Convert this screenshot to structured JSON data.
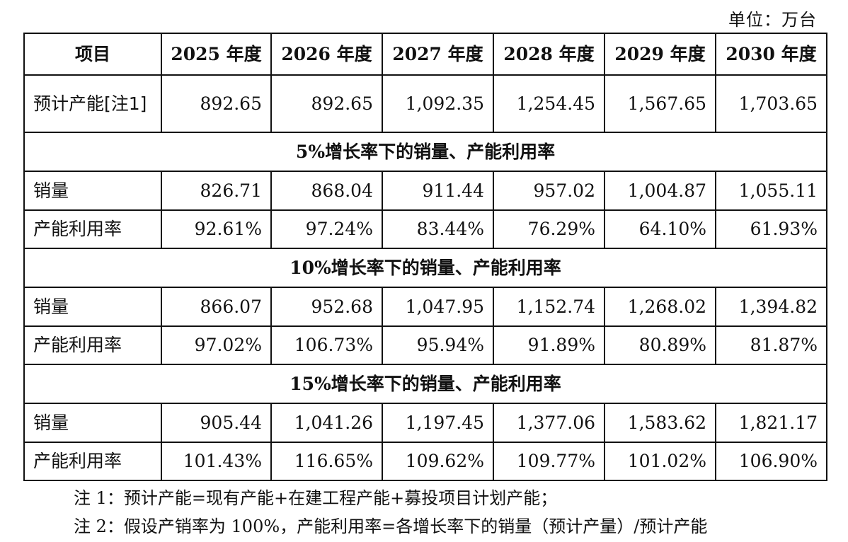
{
  "unit_label": "单位：万台",
  "table": {
    "headers": [
      "项目",
      "2025 年度",
      "2026 年度",
      "2027 年度",
      "2028 年度",
      "2029 年度",
      "2030 年度"
    ],
    "capacity_row": {
      "label": "预计产能[注1]",
      "values": [
        "892.65",
        "892.65",
        "1,092.35",
        "1,254.45",
        "1,567.65",
        "1,703.65"
      ]
    },
    "sections": [
      {
        "title": "5%增长率下的销量、产能利用率",
        "rows": [
          {
            "label": "销量",
            "values": [
              "826.71",
              "868.04",
              "911.44",
              "957.02",
              "1,004.87",
              "1,055.11"
            ]
          },
          {
            "label": "产能利用率",
            "values": [
              "92.61%",
              "97.24%",
              "83.44%",
              "76.29%",
              "64.10%",
              "61.93%"
            ]
          }
        ]
      },
      {
        "title": "10%增长率下的销量、产能利用率",
        "rows": [
          {
            "label": "销量",
            "values": [
              "866.07",
              "952.68",
              "1,047.95",
              "1,152.74",
              "1,268.02",
              "1,394.82"
            ]
          },
          {
            "label": "产能利用率",
            "values": [
              "97.02%",
              "106.73%",
              "95.94%",
              "91.89%",
              "80.89%",
              "81.87%"
            ]
          }
        ]
      },
      {
        "title": "15%增长率下的销量、产能利用率",
        "rows": [
          {
            "label": "销量",
            "values": [
              "905.44",
              "1,041.26",
              "1,197.45",
              "1,377.06",
              "1,583.62",
              "1,821.17"
            ]
          },
          {
            "label": "产能利用率",
            "values": [
              "101.43%",
              "116.65%",
              "109.62%",
              "109.77%",
              "101.02%",
              "106.90%"
            ]
          }
        ]
      }
    ]
  },
  "notes": [
    "注 1：预计产能=现有产能+在建工程产能+募投项目计划产能；",
    "注 2：假设产销率为 100%，产能利用率=各增长率下的销量（预计产量）/预计产能"
  ]
}
